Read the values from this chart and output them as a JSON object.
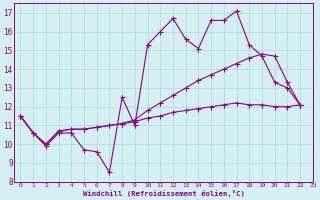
{
  "xlabel": "Windchill (Refroidissement éolien,°C)",
  "background_color": "#d4f0f0",
  "grid_color": "#b8dede",
  "line_color": "#880088",
  "xlim": [
    -0.5,
    23
  ],
  "ylim": [
    8,
    17.5
  ],
  "xticks": [
    0,
    1,
    2,
    3,
    4,
    5,
    6,
    7,
    8,
    9,
    10,
    11,
    12,
    13,
    14,
    15,
    16,
    17,
    18,
    19,
    20,
    21,
    22,
    23
  ],
  "yticks": [
    8,
    9,
    10,
    11,
    12,
    13,
    14,
    15,
    16,
    17
  ],
  "line1_x": [
    0,
    1,
    2,
    3,
    4,
    5,
    6,
    7,
    8,
    9,
    10,
    11,
    12,
    13,
    14,
    15,
    16,
    17,
    18,
    19,
    20,
    21,
    22
  ],
  "line1_y": [
    11.5,
    10.6,
    9.9,
    10.6,
    10.6,
    9.7,
    9.6,
    8.5,
    12.5,
    11.0,
    15.3,
    16.0,
    16.7,
    15.6,
    15.1,
    16.6,
    16.6,
    17.1,
    15.3,
    14.7,
    13.3,
    13.0,
    12.1
  ],
  "line2_x": [
    0,
    1,
    2,
    3,
    4,
    5,
    6,
    7,
    8,
    9,
    10,
    11,
    12,
    13,
    14,
    15,
    16,
    17,
    18,
    19,
    20,
    21,
    22
  ],
  "line2_y": [
    11.5,
    10.6,
    10.0,
    10.7,
    10.8,
    10.8,
    10.9,
    11.0,
    11.1,
    11.3,
    11.8,
    12.2,
    12.6,
    13.0,
    13.4,
    13.7,
    14.0,
    14.3,
    14.6,
    14.8,
    14.7,
    13.3,
    12.1
  ],
  "line3_x": [
    0,
    1,
    2,
    3,
    4,
    5,
    6,
    7,
    8,
    9,
    10,
    11,
    12,
    13,
    14,
    15,
    16,
    17,
    18,
    19,
    20,
    21,
    22
  ],
  "line3_y": [
    11.5,
    10.6,
    10.0,
    10.7,
    10.8,
    10.8,
    10.9,
    11.0,
    11.1,
    11.2,
    11.4,
    11.5,
    11.7,
    11.8,
    11.9,
    12.0,
    12.1,
    12.2,
    12.1,
    12.1,
    12.0,
    12.0,
    12.1
  ]
}
